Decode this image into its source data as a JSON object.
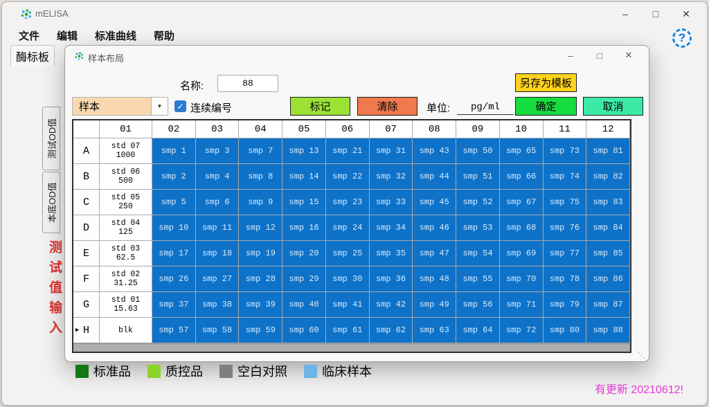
{
  "window": {
    "title": "mELISA"
  },
  "menu": {
    "items": [
      "文件",
      "编辑",
      "标准曲线",
      "帮助"
    ]
  },
  "tab": {
    "label": "酶标板"
  },
  "side_tabs": {
    "test_od": "测试OD值",
    "background_od": "本底OD值",
    "red_label": "测试值输入"
  },
  "icons": {
    "help": "?",
    "minimize": "–",
    "maximize": "□",
    "close": "✕",
    "dropdown": "▼",
    "check": "✓",
    "row_marker": "▶",
    "resize_grip": "⋱"
  },
  "dialog": {
    "title": "样本布局",
    "name_label": "名称:",
    "name_value": "88",
    "save_template_label": "另存为模板",
    "sample_type_value": "样本",
    "continuous_numbering_label": "连续编号",
    "mark_label": "标记",
    "clear_label": "清除",
    "unit_label": "单位:",
    "unit_value": "pg/ml",
    "ok_label": "确定",
    "cancel_label": "取消"
  },
  "colors": {
    "well_blue": "#0e72c8",
    "mark_button": "#9be234",
    "clear_button": "#f0794e",
    "save_template_button": "#ffd21c",
    "ok_button": "#17dc3f",
    "cancel_button": "#3ceaa5",
    "combo_fill": "#fad7b0",
    "update_text": "#e438d8"
  },
  "plate": {
    "col_headers": [
      "",
      "01",
      "02",
      "03",
      "04",
      "05",
      "06",
      "07",
      "08",
      "09",
      "10",
      "11",
      "12"
    ],
    "active_row": "H",
    "rows": [
      {
        "label": "A",
        "std": [
          "std 07",
          "1000"
        ],
        "samples": [
          "smp 1",
          "smp 3",
          "smp 7",
          "smp 13",
          "smp 21",
          "smp 31",
          "smp 43",
          "smp 50",
          "smp 65",
          "smp 73",
          "smp 81"
        ]
      },
      {
        "label": "B",
        "std": [
          "std 06",
          "500"
        ],
        "samples": [
          "smp 2",
          "smp 4",
          "smp 8",
          "smp 14",
          "smp 22",
          "smp 32",
          "smp 44",
          "smp 51",
          "smp 66",
          "smp 74",
          "smp 82"
        ]
      },
      {
        "label": "C",
        "std": [
          "std 05",
          "250"
        ],
        "samples": [
          "smp 5",
          "smp 6",
          "smp 9",
          "smp 15",
          "smp 23",
          "smp 33",
          "smp 45",
          "smp 52",
          "smp 67",
          "smp 75",
          "smp 83"
        ]
      },
      {
        "label": "D",
        "std": [
          "std 04",
          "125"
        ],
        "samples": [
          "smp 10",
          "smp 11",
          "smp 12",
          "smp 16",
          "smp 24",
          "smp 34",
          "smp 46",
          "smp 53",
          "smp 68",
          "smp 76",
          "smp 84"
        ]
      },
      {
        "label": "E",
        "std": [
          "std 03",
          "62.5"
        ],
        "samples": [
          "smp 17",
          "smp 18",
          "smp 19",
          "smp 20",
          "smp 25",
          "smp 35",
          "smp 47",
          "smp 54",
          "smp 69",
          "smp 77",
          "smp 85"
        ]
      },
      {
        "label": "F",
        "std": [
          "std 02",
          "31.25"
        ],
        "samples": [
          "smp 26",
          "smp 27",
          "smp 28",
          "smp 29",
          "smp 30",
          "smp 36",
          "smp 48",
          "smp 55",
          "smp 70",
          "smp 78",
          "smp 86"
        ]
      },
      {
        "label": "G",
        "std": [
          "std 01",
          "15.63"
        ],
        "samples": [
          "smp 37",
          "smp 38",
          "smp 39",
          "smp 40",
          "smp 41",
          "smp 42",
          "smp 49",
          "smp 56",
          "smp 71",
          "smp 79",
          "smp 87"
        ]
      },
      {
        "label": "H",
        "std": [
          "blk"
        ],
        "samples": [
          "smp 57",
          "smp 58",
          "smp 59",
          "smp 60",
          "smp 61",
          "smp 62",
          "smp 63",
          "smp 64",
          "smp 72",
          "smp 80",
          "smp 88"
        ]
      }
    ]
  },
  "legend": {
    "items": [
      {
        "label": "标准品",
        "color": "#147814"
      },
      {
        "label": "质控品",
        "color": "#8cd42a"
      },
      {
        "label": "空白对照",
        "color": "#7f7f7f"
      },
      {
        "label": "临床样本",
        "color": "#6db5e6"
      }
    ]
  },
  "status": {
    "update_text": "有更新 20210612!"
  }
}
